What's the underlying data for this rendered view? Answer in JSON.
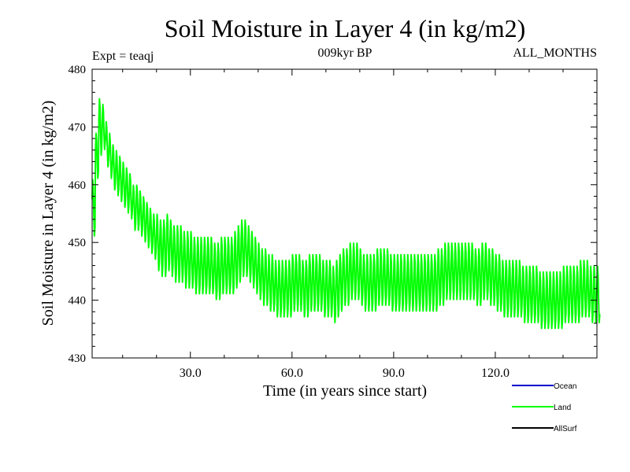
{
  "chart_data": {
    "type": "line",
    "title": "Soil Moisture in Layer 4 (in kg/m2)",
    "subtitle_left": "Expt = teaqj",
    "subtitle_center": "009kyr BP",
    "subtitle_right": "ALL_MONTHS",
    "xlabel": "Time (in years since start)",
    "ylabel": "Soil Moisture in Layer 4 (in kg/m2)",
    "xlim": [
      1,
      150
    ],
    "ylim": [
      430,
      480
    ],
    "x_ticks": [
      30,
      60,
      90,
      120
    ],
    "x_tick_labels": [
      "30.0",
      "60.0",
      "90.0",
      "120.0"
    ],
    "y_ticks": [
      430,
      440,
      450,
      460,
      470,
      480
    ],
    "y_tick_labels": [
      "430",
      "440",
      "450",
      "460",
      "470",
      "480"
    ],
    "legend": [
      {
        "name": "Ocean",
        "color": "#0000cc"
      },
      {
        "name": "Land",
        "color": "#00ff00"
      },
      {
        "name": "AllSurf",
        "color": "#000000"
      }
    ],
    "series": [
      {
        "name": "Land",
        "color": "#00ff00",
        "x_start": 1,
        "x_step": 1,
        "annual_means": [
          456,
          465,
          470,
          470,
          467,
          465,
          463,
          462,
          461,
          460,
          459,
          458,
          456,
          456,
          455,
          454,
          453,
          452,
          451,
          450,
          449,
          449,
          450,
          449,
          448,
          448,
          448,
          447,
          447,
          447,
          446,
          446,
          446,
          446,
          446,
          446,
          445,
          445,
          446,
          446,
          446,
          446,
          447,
          448,
          449,
          449,
          448,
          447,
          446,
          445,
          444,
          444,
          443,
          443,
          442,
          442,
          442,
          442,
          442,
          443,
          443,
          443,
          442,
          442,
          443,
          443,
          443,
          443,
          442,
          442,
          442,
          441,
          442,
          443,
          444,
          444,
          445,
          445,
          445,
          444,
          443,
          443,
          443,
          443,
          444,
          444,
          444,
          444,
          443,
          443,
          443,
          443,
          443,
          443,
          443,
          443,
          443,
          443,
          443,
          443,
          443,
          443,
          444,
          444,
          445,
          445,
          445,
          445,
          445,
          445,
          445,
          445,
          445,
          444,
          444,
          445,
          445,
          444,
          444,
          443,
          443,
          442,
          442,
          442,
          442,
          442,
          442,
          441,
          441,
          441,
          441,
          441,
          440,
          440,
          440,
          440,
          440,
          440,
          440,
          441,
          441,
          441,
          441,
          441,
          442,
          442,
          442,
          441,
          441,
          441
        ],
        "seasonal_amplitude": [
          5,
          4,
          5,
          4,
          4,
          4,
          4,
          4,
          4,
          4,
          4,
          4,
          4,
          4,
          4,
          4,
          4,
          4,
          4,
          5,
          5,
          5,
          5,
          5,
          5,
          5,
          5,
          5,
          5,
          5,
          5,
          5,
          5,
          5,
          5,
          5,
          5,
          5,
          5,
          5,
          5,
          5,
          5,
          5,
          5,
          5,
          5,
          5,
          5,
          5,
          5,
          5,
          5,
          5,
          5,
          5,
          5,
          5,
          5,
          5,
          5,
          5,
          5,
          5,
          5,
          5,
          5,
          5,
          5,
          5,
          5,
          5,
          5,
          5,
          5,
          5,
          5,
          5,
          5,
          5,
          5,
          5,
          5,
          5,
          5,
          5,
          5,
          5,
          5,
          5,
          5,
          5,
          5,
          5,
          5,
          5,
          5,
          5,
          5,
          5,
          5,
          5,
          5,
          5,
          5,
          5,
          5,
          5,
          5,
          5,
          5,
          5,
          5,
          5,
          5,
          5,
          5,
          5,
          5,
          5,
          5,
          5,
          5,
          5,
          5,
          5,
          5,
          5,
          5,
          5,
          5,
          5,
          5,
          5,
          5,
          5,
          5,
          5,
          5,
          5,
          5,
          5,
          5,
          5,
          5,
          5,
          5,
          5,
          5,
          5
        ]
      }
    ]
  }
}
